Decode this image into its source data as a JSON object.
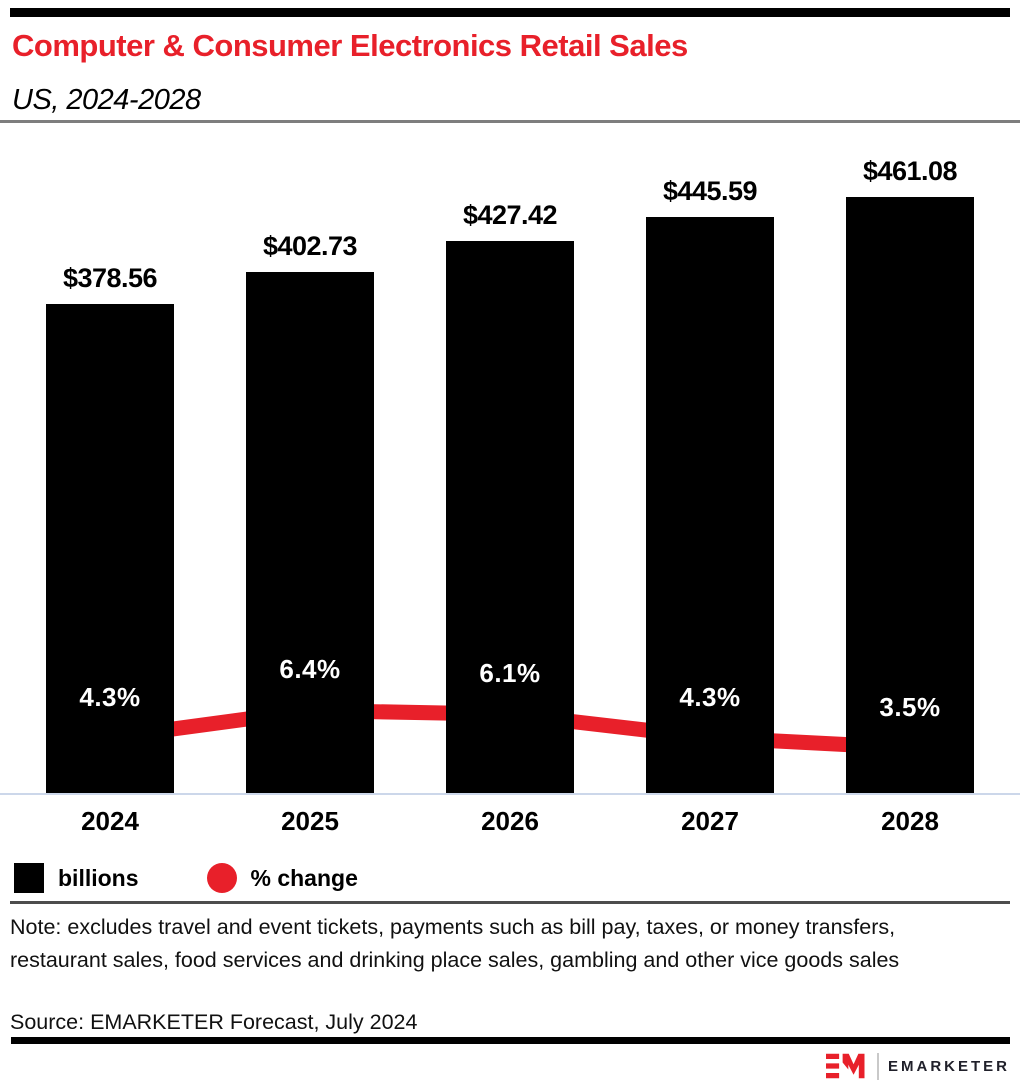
{
  "header": {
    "title": "Computer & Consumer Electronics Retail Sales",
    "subtitle": "US, 2024-2028"
  },
  "legend": {
    "items": [
      {
        "label": "billions",
        "swatch": "square",
        "color": "#000000"
      },
      {
        "label": "% change",
        "swatch": "circle",
        "color": "#e8202a"
      }
    ]
  },
  "note": {
    "text": "Note: excludes travel and event tickets, payments such as bill pay, taxes, or money transfers, restaurant sales, food services and drinking place sales, gambling and other vice goods sales"
  },
  "source": {
    "text": "Source: EMARKETER Forecast, July 2024"
  },
  "branding": {
    "logo_monogram": "EM",
    "logo_text": "EMARKETER"
  },
  "colors": {
    "accent_red": "#e8202a",
    "bar_black": "#000000",
    "baseline_blue_gray": "#ccd7ea",
    "header_divider_gray": "#7e7e7e",
    "legend_divider_gray": "#4d4d4d"
  },
  "chart_data": {
    "type": "bar",
    "subtype": "bar+line combo",
    "title": "Computer & Consumer Electronics Retail Sales",
    "subtitle": "US, 2024-2028",
    "categories": [
      "2024",
      "2025",
      "2026",
      "2027",
      "2028"
    ],
    "series": [
      {
        "name": "billions",
        "type": "bar",
        "unit": "USD billions",
        "values": [
          378.56,
          402.73,
          427.42,
          445.59,
          461.08
        ],
        "labels": [
          "$378.56",
          "$402.73",
          "$427.42",
          "$445.59",
          "$461.08"
        ],
        "color": "#000000"
      },
      {
        "name": "% change",
        "type": "line",
        "unit": "percent",
        "values": [
          4.3,
          6.4,
          6.1,
          4.3,
          3.5
        ],
        "labels": [
          "4.3%",
          "6.4%",
          "6.1%",
          "4.3%",
          "3.5%"
        ],
        "color": "#e8202a"
      }
    ],
    "xlabel": "",
    "ylabel": "",
    "bar_axis_range": [
      0,
      506
    ],
    "grid": false,
    "value_labels_shown": true,
    "legend_position": "bottom-left"
  }
}
